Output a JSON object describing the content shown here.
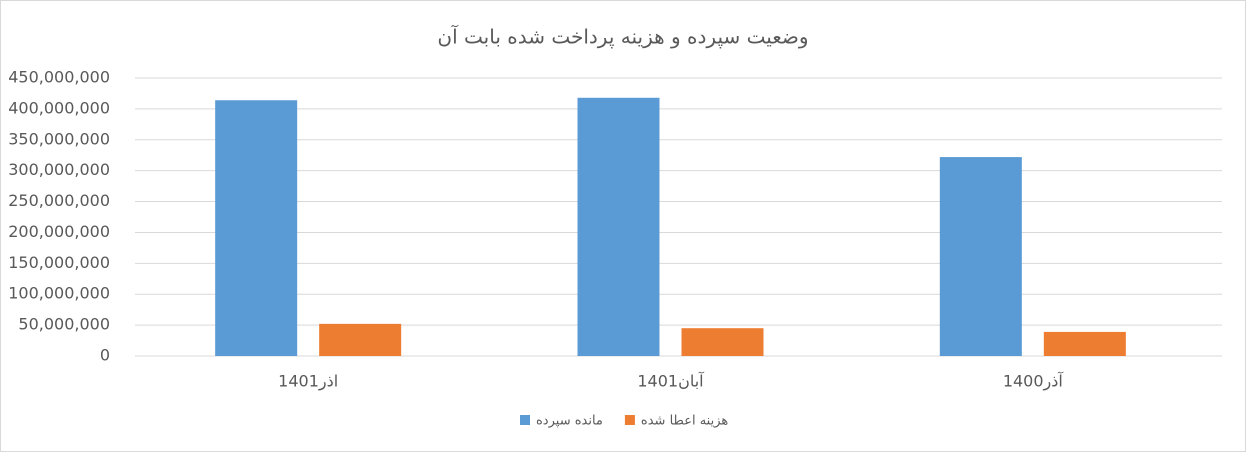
{
  "chart_data": {
    "type": "bar",
    "title": "وضعیت سپرده و هزینه پرداخت شده بابت آن",
    "categories": [
      "اذر1401",
      "آبان1401",
      "آذر1400"
    ],
    "series": [
      {
        "name": "مانده سپرده",
        "color": "#5b9bd5",
        "values": [
          414000000,
          418000000,
          322000000
        ]
      },
      {
        "name": "هزینه اعطا شده",
        "color": "#ed7d31",
        "values": [
          52000000,
          45000000,
          39000000
        ]
      }
    ],
    "ylim": [
      0,
      450000000
    ],
    "yticks": [
      0,
      {
        "value": 50000000,
        "label": "50,000,000"
      },
      {
        "value": 100000000,
        "label": "100,000,000"
      },
      {
        "value": 150000000,
        "label": "150,000,000"
      },
      {
        "value": 200000000,
        "label": "200,000,000"
      },
      {
        "value": 250000000,
        "label": "250,000,000"
      },
      {
        "value": 300000000,
        "label": "300,000,000"
      },
      {
        "value": 350000000,
        "label": "350,000,000"
      },
      {
        "value": 400000000,
        "label": "400,000,000"
      },
      {
        "value": 450000000,
        "label": "450,000,000"
      }
    ],
    "grid": true,
    "legend": "bottom"
  }
}
